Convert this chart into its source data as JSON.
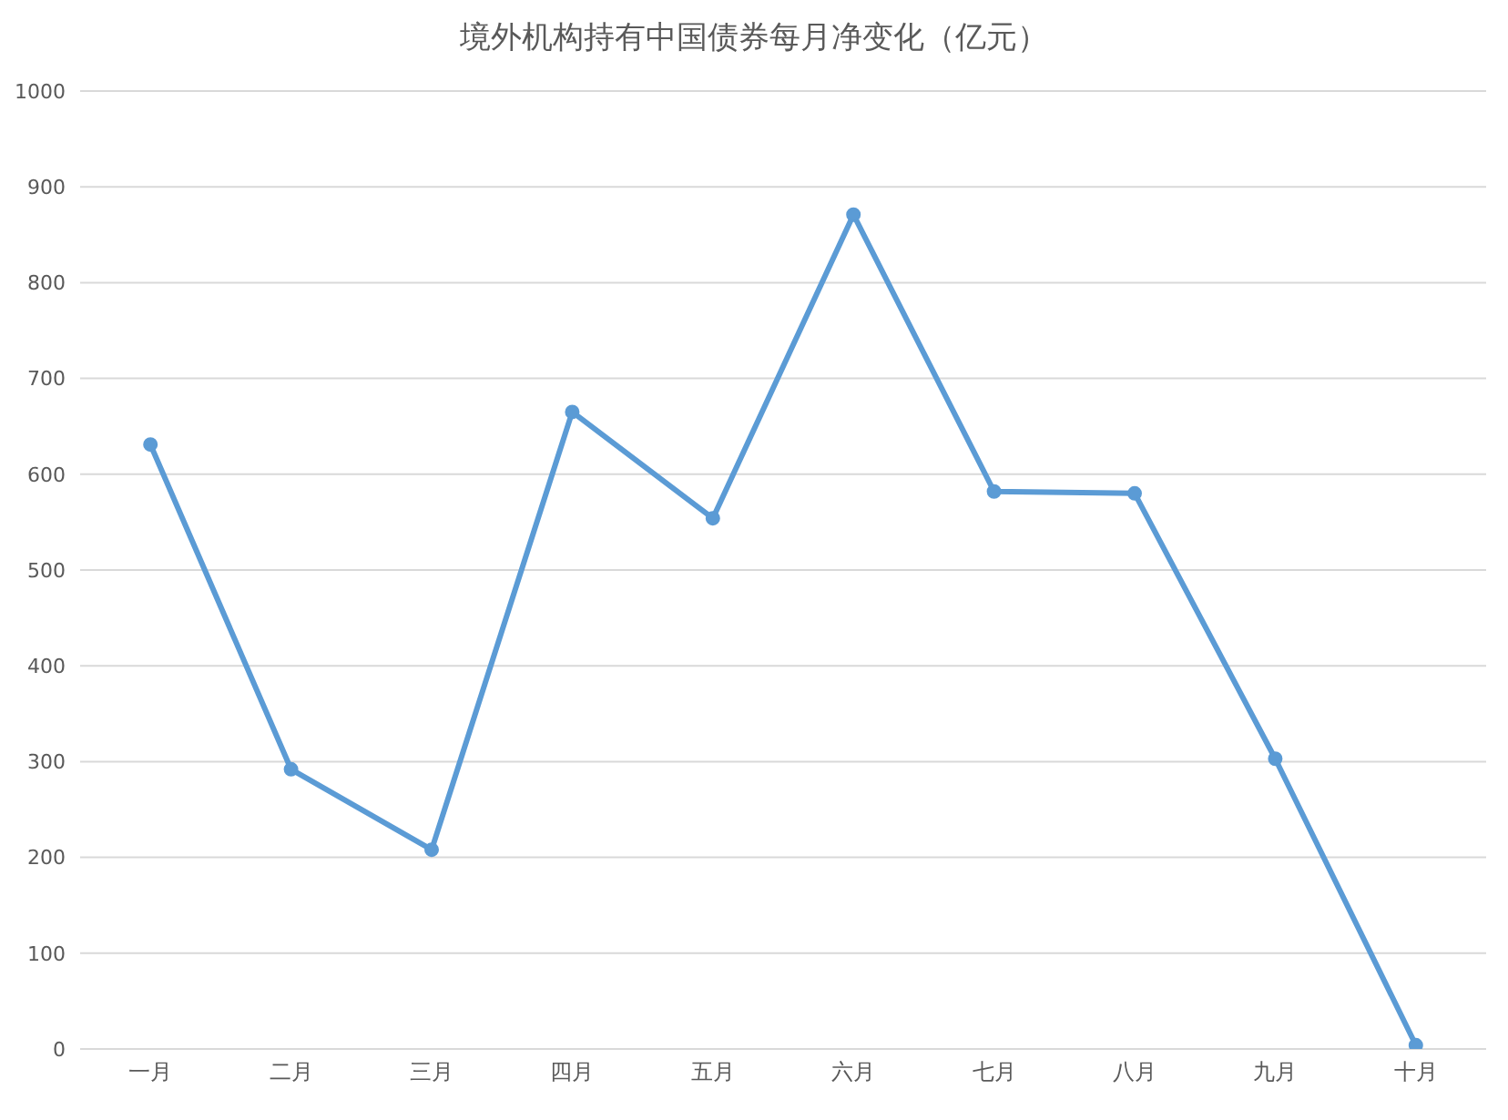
{
  "chart_data": {
    "type": "line",
    "title": "境外机构持有中国债券每月净变化（亿元）",
    "categories": [
      "一月",
      "二月",
      "三月",
      "四月",
      "五月",
      "六月",
      "七月",
      "八月",
      "九月",
      "十月"
    ],
    "series": [
      {
        "color": "#5b9bd5",
        "values": [
          631,
          292,
          208,
          665,
          554,
          871,
          582,
          580,
          303,
          4
        ]
      }
    ],
    "ylim": [
      0,
      1000
    ],
    "yticks": [
      0,
      100,
      200,
      300,
      400,
      500,
      600,
      700,
      800,
      900,
      1000
    ],
    "grid": "y",
    "marker": "circle",
    "line_style": "solid"
  }
}
